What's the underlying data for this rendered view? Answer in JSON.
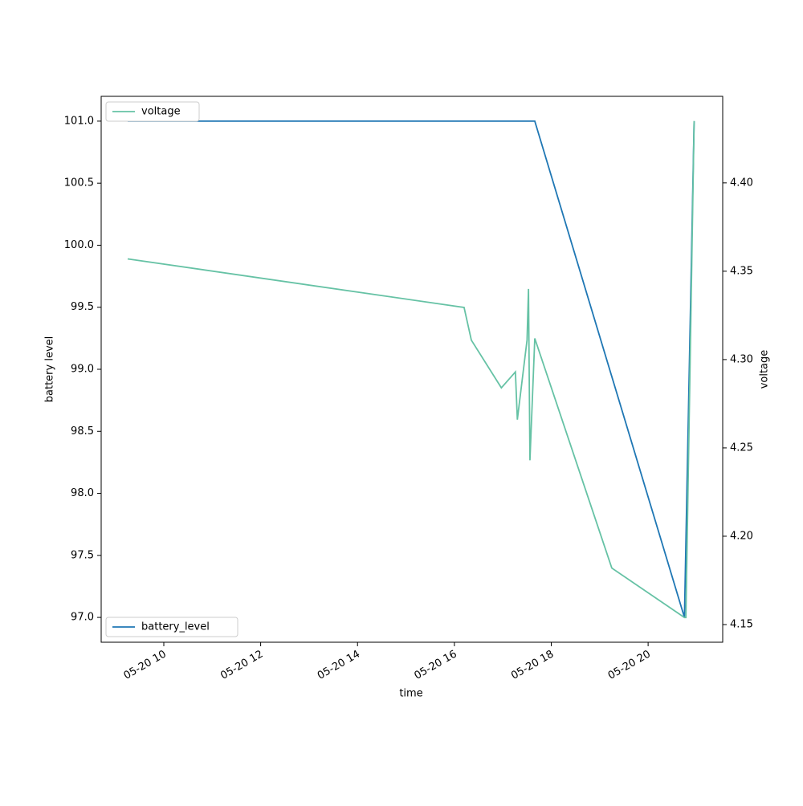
{
  "chart_data": {
    "type": "line",
    "x_label": "time",
    "y_label": "battery level",
    "y2_label": "voltage",
    "xlim": [
      8.707,
      21.54
    ],
    "ylim": [
      96.8,
      101.2
    ],
    "y2lim": [
      4.14,
      4.449
    ],
    "xticks": [
      {
        "value": 10,
        "label": "05-20 10"
      },
      {
        "value": 12,
        "label": "05-20 12"
      },
      {
        "value": 14,
        "label": "05-20 14"
      },
      {
        "value": 16,
        "label": "05-20 16"
      },
      {
        "value": 18,
        "label": "05-20 18"
      },
      {
        "value": 20,
        "label": "05-20 20"
      }
    ],
    "yticks": [
      {
        "value": 97,
        "label": "97.0"
      },
      97.5,
      {
        "value": 98,
        "label": "98.0"
      },
      98.5,
      {
        "value": 99,
        "label": "99.0"
      },
      99.5,
      {
        "value": 100,
        "label": "100.0"
      },
      100.5,
      {
        "value": 101,
        "label": "101.0"
      }
    ],
    "y2ticks": [
      4.15,
      {
        "value": 4.2,
        "label": "4.20"
      },
      4.25,
      {
        "value": 4.3,
        "label": "4.30"
      },
      4.35,
      {
        "value": 4.4,
        "label": "4.40"
      }
    ],
    "grid": false,
    "series": [
      {
        "name": "battery_level",
        "color": "#1f77b4",
        "legend": "lower left",
        "x": [
          9.254,
          17.66,
          20.75,
          20.95
        ],
        "values": [
          101,
          101,
          97,
          101
        ]
      },
      {
        "name": "voltage",
        "color": "#66c2a5",
        "legend": "upper left",
        "axis": "y2",
        "x": [
          9.254,
          16.2,
          16.35,
          16.97,
          17.26,
          17.3,
          17.5,
          17.53,
          17.56,
          17.66,
          19.25,
          20.75,
          20.78,
          20.95
        ],
        "values": [
          4.357,
          4.3295,
          4.311,
          4.284,
          4.293,
          4.266,
          4.311,
          4.34,
          4.243,
          4.312,
          4.182,
          4.154,
          4.154,
          4.435
        ]
      }
    ]
  }
}
